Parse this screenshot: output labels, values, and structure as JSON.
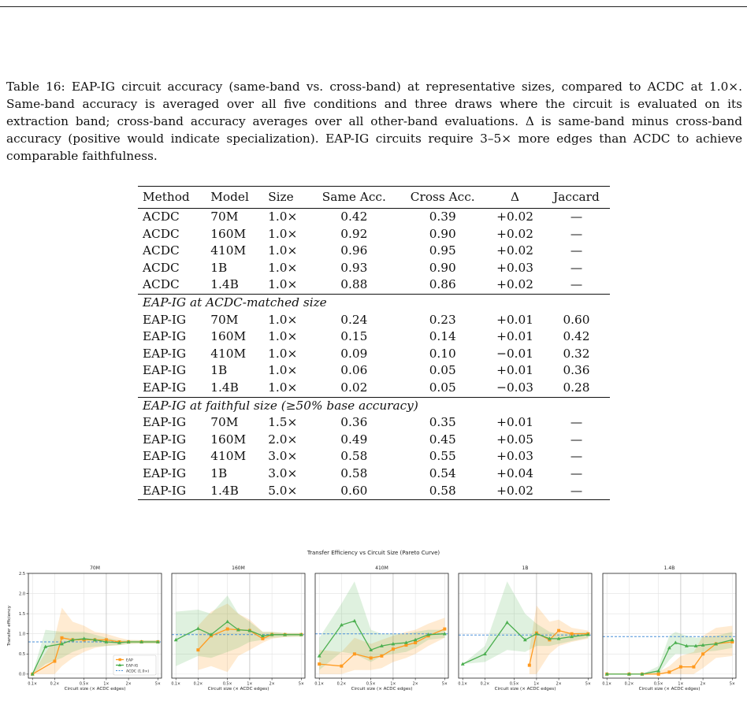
{
  "caption": {
    "label": "Table 16:",
    "text": "EAP-IG circuit accuracy (same-band vs. cross-band) at representative sizes, compared to ACDC at 1.0×. Same-band accuracy is averaged over all five conditions and three draws where the circuit is evaluated on its extraction band; cross-band accuracy averages over all other-band evaluations. Δ is same-band minus cross-band accuracy (positive would indicate specialization). EAP-IG circuits require 3–5× more edges than ACDC to achieve comparable faithfulness."
  },
  "table": {
    "headers": [
      "Method",
      "Model",
      "Size",
      "Same Acc.",
      "Cross Acc.",
      "Δ",
      "Jaccard"
    ],
    "sections": [
      {
        "title": "",
        "rows": [
          [
            "ACDC",
            "70M",
            "1.0×",
            "0.42",
            "0.39",
            "+0.02",
            "—"
          ],
          [
            "ACDC",
            "160M",
            "1.0×",
            "0.92",
            "0.90",
            "+0.02",
            "—"
          ],
          [
            "ACDC",
            "410M",
            "1.0×",
            "0.96",
            "0.95",
            "+0.02",
            "—"
          ],
          [
            "ACDC",
            "1B",
            "1.0×",
            "0.93",
            "0.90",
            "+0.03",
            "—"
          ],
          [
            "ACDC",
            "1.4B",
            "1.0×",
            "0.88",
            "0.86",
            "+0.02",
            "—"
          ]
        ]
      },
      {
        "title": "EAP-IG at ACDC-matched size",
        "rows": [
          [
            "EAP-IG",
            "70M",
            "1.0×",
            "0.24",
            "0.23",
            "+0.01",
            "0.60"
          ],
          [
            "EAP-IG",
            "160M",
            "1.0×",
            "0.15",
            "0.14",
            "+0.01",
            "0.42"
          ],
          [
            "EAP-IG",
            "410M",
            "1.0×",
            "0.09",
            "0.10",
            "−0.01",
            "0.32"
          ],
          [
            "EAP-IG",
            "1B",
            "1.0×",
            "0.06",
            "0.05",
            "+0.01",
            "0.36"
          ],
          [
            "EAP-IG",
            "1.4B",
            "1.0×",
            "0.02",
            "0.05",
            "−0.03",
            "0.28"
          ]
        ]
      },
      {
        "title": "EAP-IG at faithful size (≥50% base accuracy)",
        "rows": [
          [
            "EAP-IG",
            "70M",
            "1.5×",
            "0.36",
            "0.35",
            "+0.01",
            "—"
          ],
          [
            "EAP-IG",
            "160M",
            "2.0×",
            "0.49",
            "0.45",
            "+0.05",
            "—"
          ],
          [
            "EAP-IG",
            "410M",
            "3.0×",
            "0.58",
            "0.55",
            "+0.03",
            "—"
          ],
          [
            "EAP-IG",
            "1B",
            "3.0×",
            "0.58",
            "0.54",
            "+0.04",
            "—"
          ],
          [
            "EAP-IG",
            "1.4B",
            "5.0×",
            "0.60",
            "0.58",
            "+0.02",
            "—"
          ]
        ]
      }
    ]
  },
  "figure": {
    "suptitle": "Transfer Efficiency vs Circuit Size (Pareto Curve)",
    "ylabel": "Transfer efficiency",
    "xlabel": "Circuit size (× ACDC edges)",
    "colors": {
      "eap": "#ff9a1f",
      "eapig": "#4caf50",
      "acdc": "#4a90d9"
    },
    "legend": [
      "EAP",
      "EAP-IG",
      "ACDC (1.0×)"
    ]
  },
  "chart_data": {
    "type": "line",
    "xscale": "log",
    "xlim": [
      0.1,
      5
    ],
    "ylim": [
      -0.1,
      2.5
    ],
    "xticks": [
      0.1,
      0.2,
      0.5,
      1,
      2,
      5
    ],
    "xtick_labels": [
      "0.1×",
      "0.2×",
      "0.5×",
      "1×",
      "2×",
      "5×"
    ],
    "yticks": [
      0.0,
      0.5,
      1.0,
      1.5,
      2.0,
      2.5
    ],
    "ytick_labels": [
      "0.0",
      "0.5",
      "1.0",
      "1.5",
      "2.0",
      "2.5"
    ],
    "grid": true,
    "legend_position": "lower right of first panel",
    "panels": [
      {
        "title": "70M",
        "acdc": 0.8,
        "series": [
          {
            "name": "EAP",
            "x": [
              0.1,
              0.2,
              0.25,
              0.35,
              0.5,
              0.7,
              1.0,
              1.5,
              2.0,
              3.0,
              5.0
            ],
            "y": [
              0.0,
              0.32,
              0.9,
              0.85,
              0.85,
              0.85,
              0.85,
              0.8,
              0.8,
              0.8,
              0.8
            ],
            "lo": [
              0.0,
              0.0,
              0.2,
              0.4,
              0.55,
              0.65,
              0.7,
              0.72,
              0.75,
              0.76,
              0.76
            ],
            "hi": [
              0.0,
              0.9,
              1.65,
              1.3,
              1.2,
              1.05,
              1.0,
              0.9,
              0.85,
              0.84,
              0.84
            ]
          },
          {
            "name": "EAP-IG",
            "x": [
              0.1,
              0.15,
              0.25,
              0.35,
              0.5,
              0.7,
              1.0,
              1.5,
              2.0,
              3.0,
              5.0
            ],
            "y": [
              0.0,
              0.68,
              0.75,
              0.85,
              0.88,
              0.85,
              0.8,
              0.78,
              0.8,
              0.8,
              0.8
            ],
            "lo": [
              0.0,
              0.25,
              0.4,
              0.55,
              0.65,
              0.68,
              0.7,
              0.72,
              0.75,
              0.76,
              0.76
            ],
            "hi": [
              0.0,
              1.1,
              1.05,
              1.05,
              1.05,
              0.98,
              0.9,
              0.84,
              0.84,
              0.84,
              0.84
            ]
          }
        ]
      },
      {
        "title": "160M",
        "acdc": 0.98,
        "series": [
          {
            "name": "EAP",
            "x": [
              0.2,
              0.3,
              0.5,
              0.7,
              1.0,
              1.5,
              2.0,
              3.0,
              5.0
            ],
            "y": [
              0.6,
              0.95,
              1.12,
              1.1,
              1.08,
              0.88,
              0.98,
              0.98,
              0.98
            ],
            "lo": [
              0.1,
              0.2,
              0.05,
              0.45,
              0.6,
              0.78,
              0.88,
              0.92,
              0.93
            ],
            "hi": [
              1.2,
              1.55,
              1.75,
              1.5,
              1.35,
              1.05,
              1.05,
              1.02,
              1.02
            ]
          },
          {
            "name": "EAP-IG",
            "x": [
              0.1,
              0.2,
              0.3,
              0.5,
              0.7,
              1.0,
              1.5,
              2.0,
              3.0,
              5.0
            ],
            "y": [
              0.85,
              1.13,
              0.98,
              1.3,
              1.1,
              1.08,
              0.95,
              0.98,
              0.98,
              0.98
            ],
            "lo": [
              0.2,
              0.45,
              0.4,
              0.55,
              0.65,
              0.8,
              0.85,
              0.9,
              0.92,
              0.93
            ],
            "hi": [
              1.55,
              1.6,
              1.5,
              1.95,
              1.5,
              1.3,
              1.05,
              1.05,
              1.02,
              1.02
            ]
          }
        ]
      },
      {
        "title": "410M",
        "acdc": 1.0,
        "series": [
          {
            "name": "EAP",
            "x": [
              0.1,
              0.2,
              0.3,
              0.5,
              0.7,
              1.0,
              1.5,
              2.0,
              3.0,
              5.0
            ],
            "y": [
              0.25,
              0.2,
              0.5,
              0.4,
              0.45,
              0.62,
              0.72,
              0.78,
              0.95,
              1.12
            ],
            "lo": [
              0.0,
              0.0,
              0.1,
              0.1,
              0.15,
              0.3,
              0.4,
              0.5,
              0.7,
              0.9
            ],
            "hi": [
              0.6,
              0.55,
              0.9,
              0.75,
              0.85,
              0.95,
              1.05,
              1.1,
              1.25,
              1.4
            ]
          },
          {
            "name": "EAP-IG",
            "x": [
              0.1,
              0.2,
              0.3,
              0.5,
              0.7,
              1.0,
              1.5,
              2.0,
              3.0,
              5.0
            ],
            "y": [
              0.45,
              1.22,
              1.32,
              0.6,
              0.7,
              0.75,
              0.78,
              0.85,
              0.98,
              1.0
            ],
            "lo": [
              0.1,
              0.55,
              0.5,
              0.3,
              0.45,
              0.5,
              0.55,
              0.65,
              0.85,
              0.9
            ],
            "hi": [
              0.9,
              1.75,
              2.3,
              1.1,
              1.0,
              1.0,
              1.0,
              1.05,
              1.1,
              1.1
            ]
          }
        ]
      },
      {
        "title": "1B",
        "acdc": 0.97,
        "series": [
          {
            "name": "EAP",
            "x": [
              0.8,
              1.0,
              1.5,
              2.0,
              3.0,
              5.0
            ],
            "y": [
              0.22,
              1.02,
              0.85,
              1.08,
              1.0,
              1.0
            ],
            "lo": [
              0.0,
              0.0,
              0.5,
              0.7,
              0.8,
              0.88
            ],
            "hi": [
              0.6,
              1.7,
              1.3,
              1.35,
              1.15,
              1.08
            ]
          },
          {
            "name": "EAP-IG",
            "x": [
              0.1,
              0.2,
              0.4,
              0.7,
              1.0,
              1.5,
              2.0,
              3.0,
              5.0
            ],
            "y": [
              0.25,
              0.5,
              1.28,
              0.85,
              1.0,
              0.88,
              0.88,
              0.93,
              0.98
            ],
            "lo": [
              0.25,
              0.3,
              0.6,
              0.55,
              0.7,
              0.7,
              0.75,
              0.82,
              0.9
            ],
            "hi": [
              0.25,
              0.7,
              2.3,
              1.5,
              1.25,
              1.05,
              1.0,
              1.02,
              1.05
            ]
          }
        ]
      },
      {
        "title": "1.4B",
        "acdc": 0.93,
        "series": [
          {
            "name": "EAP",
            "x": [
              0.1,
              0.2,
              0.3,
              0.5,
              0.7,
              1.0,
              1.5,
              2.0,
              3.0,
              5.0
            ],
            "y": [
              0.0,
              0.0,
              0.0,
              0.0,
              0.05,
              0.18,
              0.18,
              0.5,
              0.75,
              0.8
            ],
            "lo": [
              0.0,
              0.0,
              0.0,
              0.0,
              0.0,
              0.0,
              0.0,
              0.15,
              0.4,
              0.45
            ],
            "hi": [
              0.0,
              0.0,
              0.0,
              0.05,
              0.2,
              0.45,
              0.55,
              0.95,
              1.15,
              1.2
            ]
          },
          {
            "name": "EAP-IG",
            "x": [
              0.1,
              0.2,
              0.3,
              0.5,
              0.7,
              0.85,
              1.2,
              1.6,
              2.0,
              3.0,
              5.0
            ],
            "y": [
              0.0,
              0.0,
              0.0,
              0.08,
              0.65,
              0.78,
              0.7,
              0.7,
              0.72,
              0.75,
              0.85
            ],
            "lo": [
              0.0,
              0.0,
              0.0,
              0.0,
              0.35,
              0.5,
              0.5,
              0.52,
              0.55,
              0.58,
              0.65
            ],
            "hi": [
              0.0,
              0.0,
              0.0,
              0.2,
              0.95,
              1.05,
              0.95,
              0.9,
              0.92,
              0.95,
              1.05
            ]
          }
        ]
      }
    ]
  }
}
